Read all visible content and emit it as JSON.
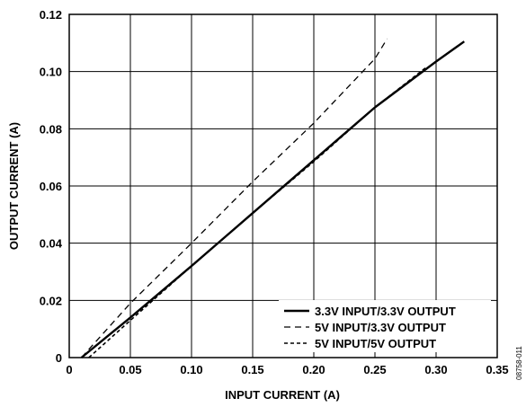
{
  "chart_data": {
    "type": "line",
    "title": "",
    "xlabel": "INPUT CURRENT (A)",
    "ylabel": "OUTPUT CURRENT (A)",
    "xlim": [
      0,
      0.35
    ],
    "ylim": [
      0,
      0.12
    ],
    "x_ticks": [
      "0",
      "0.05",
      "0.10",
      "0.15",
      "0.20",
      "0.25",
      "0.30",
      "0.35"
    ],
    "y_ticks": [
      "0",
      "0.02",
      "0.04",
      "0.06",
      "0.08",
      "0.10",
      "0.12"
    ],
    "grid": true,
    "legend_position": "bottom-right",
    "series": [
      {
        "name": "3.3V INPUT/3.3V OUTPUT",
        "style": "solid",
        "points": [
          [
            0.01,
            0.0
          ],
          [
            0.05,
            0.014
          ],
          [
            0.1,
            0.032
          ],
          [
            0.15,
            0.0505
          ],
          [
            0.2,
            0.069
          ],
          [
            0.25,
            0.0875
          ],
          [
            0.3,
            0.1035
          ],
          [
            0.323,
            0.1105
          ]
        ]
      },
      {
        "name": "5V INPUT/3.3V OUTPUT",
        "style": "dashed",
        "points": [
          [
            0.01,
            0.0
          ],
          [
            0.05,
            0.019
          ],
          [
            0.1,
            0.04
          ],
          [
            0.15,
            0.0615
          ],
          [
            0.2,
            0.082
          ],
          [
            0.25,
            0.1045
          ],
          [
            0.26,
            0.1115
          ]
        ]
      },
      {
        "name": "5V INPUT/5V OUTPUT",
        "style": "short-dashed",
        "points": [
          [
            0.016,
            0.0
          ],
          [
            0.05,
            0.013
          ],
          [
            0.1,
            0.032
          ],
          [
            0.15,
            0.0505
          ],
          [
            0.2,
            0.0685
          ],
          [
            0.25,
            0.0875
          ],
          [
            0.292,
            0.1015
          ]
        ]
      }
    ]
  },
  "figure_id": "08758-011"
}
